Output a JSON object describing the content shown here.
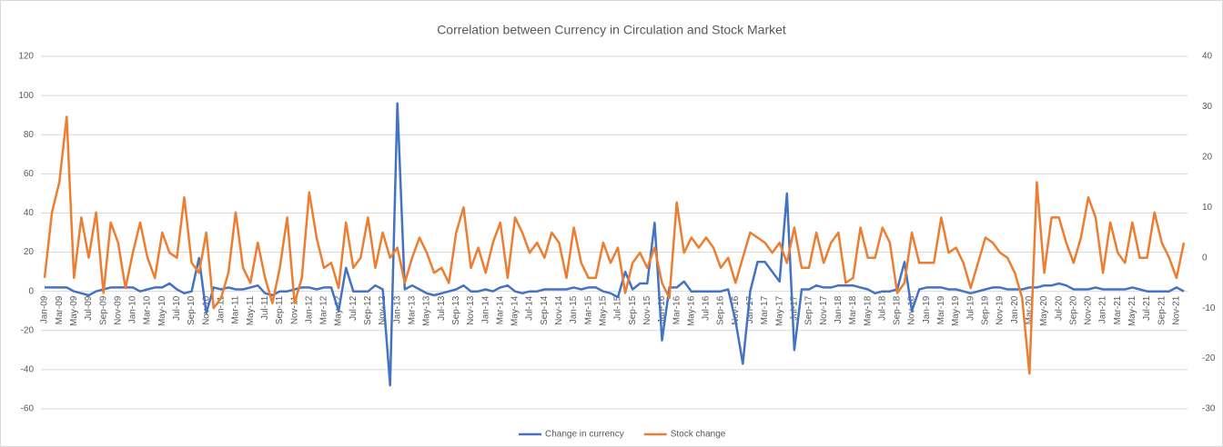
{
  "chart_data": {
    "type": "line",
    "title": "Correlation between Currency in Circulation and Stock Market",
    "categories": [
      "Jan-09",
      null,
      "Mar-09",
      null,
      "May-09",
      null,
      "Jul-09",
      null,
      "Sep-09",
      null,
      "Nov-09",
      null,
      "Jan-10",
      null,
      "Mar-10",
      null,
      "May-10",
      null,
      "Jul-10",
      null,
      "Sep-10",
      null,
      "Nov-10",
      null,
      "Jan-11",
      null,
      "Mar-11",
      null,
      "May-11",
      null,
      "Jul-11",
      null,
      "Sep-11",
      null,
      "Nov-11",
      null,
      "Jan-12",
      null,
      "Mar-12",
      null,
      "May-12",
      null,
      "Jul-12",
      null,
      "Sep-12",
      null,
      "Nov-12",
      null,
      "Jan-13",
      null,
      "Mar-13",
      null,
      "May-13",
      null,
      "Jul-13",
      null,
      "Sep-13",
      null,
      "Nov-13",
      null,
      "Jan-14",
      null,
      "Mar-14",
      null,
      "May-14",
      null,
      "Jul-14",
      null,
      "Sep-14",
      null,
      "Nov-14",
      null,
      "Jan-15",
      null,
      "Mar-15",
      null,
      "May-15",
      null,
      "Jul-15",
      null,
      "Sep-15",
      null,
      "Nov-15",
      null,
      "Jan-16",
      null,
      "Mar-16",
      null,
      "May-16",
      null,
      "Jul-16",
      null,
      "Sep-16",
      null,
      "Nov-16",
      null,
      "Jan-17",
      null,
      "Mar-17",
      null,
      "May-17",
      null,
      "Jul-17",
      null,
      "Sep-17",
      null,
      "Nov-17",
      null,
      "Jan-18",
      null,
      "Mar-18",
      null,
      "May-18",
      null,
      "Jul-18",
      null,
      "Sep-18",
      null,
      "Nov-18",
      null,
      "Jan-19",
      null,
      "Mar-19",
      null,
      "May-19",
      null,
      "Jul-19",
      null,
      "Sep-19",
      null,
      "Nov-19",
      null,
      "Jan-20",
      null,
      "Mar-20",
      null,
      "May-20",
      null,
      "Jul-20",
      null,
      "Sep-20",
      null,
      "Nov-20",
      null,
      "Jan-21",
      null,
      "Mar-21",
      null,
      "May-21",
      null,
      "Jul-21",
      null,
      "Sep-21",
      null,
      "Nov-21",
      null
    ],
    "series": [
      {
        "name": "Change in currency",
        "color": "#4472c4",
        "values": [
          2,
          2,
          2,
          2,
          0,
          -1,
          -2,
          0,
          1,
          2,
          2,
          2,
          2,
          0,
          1,
          2,
          2,
          4,
          1,
          -1,
          0,
          17,
          -11,
          2,
          1,
          2,
          1,
          1,
          2,
          3,
          -1,
          -2,
          0,
          0,
          1,
          2,
          2,
          1,
          2,
          2,
          -10,
          12,
          0,
          0,
          0,
          3,
          1,
          -48,
          96,
          1,
          3,
          1,
          -1,
          -2,
          -1,
          0,
          1,
          3,
          0,
          0,
          1,
          0,
          2,
          3,
          0,
          -1,
          0,
          0,
          1,
          1,
          1,
          1,
          2,
          1,
          2,
          2,
          0,
          -1,
          -3,
          10,
          1,
          4,
          4,
          35,
          -25,
          2,
          2,
          5,
          0,
          0,
          0,
          0,
          0,
          1,
          -15,
          -37,
          0,
          15,
          15,
          10,
          5,
          50,
          -30,
          1,
          1,
          3,
          2,
          2,
          3,
          3,
          3,
          2,
          1,
          -1,
          0,
          0,
          1,
          15,
          -10,
          1,
          2,
          2,
          2,
          1,
          1,
          0,
          -1,
          0,
          1,
          2,
          2,
          1,
          1,
          1,
          2,
          2,
          3,
          3,
          4,
          3,
          1,
          1,
          1,
          2,
          1,
          1,
          1,
          1,
          2,
          1,
          0,
          0,
          0,
          0,
          2,
          0
        ]
      },
      {
        "name": "Stock change",
        "color": "#ed7d31",
        "axis": "y2",
        "values": [
          -4,
          9,
          15,
          28,
          -4,
          8,
          0,
          9,
          -7,
          7,
          3,
          -6,
          1,
          7,
          0,
          -4,
          5,
          1,
          0,
          12,
          -1,
          -3,
          5,
          -10,
          -8,
          -3,
          9,
          -2,
          -5,
          3,
          -4,
          -9,
          -2,
          8,
          -9,
          -4,
          13,
          4,
          -2,
          -1,
          -6,
          7,
          -2,
          0,
          8,
          -2,
          5,
          0,
          2,
          -5,
          0,
          4,
          1,
          -3,
          -2,
          -5,
          5,
          10,
          -2,
          2,
          -3,
          3,
          7,
          -4,
          8,
          5,
          1,
          3,
          0,
          5,
          3,
          -4,
          6,
          -1,
          -4,
          -4,
          3,
          -1,
          2,
          -7,
          -1,
          1,
          -2,
          2,
          -5,
          -8,
          11,
          1,
          4,
          2,
          4,
          2,
          -2,
          0,
          -5,
          0,
          5,
          4,
          3,
          1,
          3,
          -1,
          6,
          -2,
          -2,
          5,
          -1,
          3,
          5,
          -5,
          -4,
          6,
          0,
          0,
          6,
          3,
          -7,
          -5,
          5,
          -1,
          -1,
          -1,
          8,
          1,
          2,
          -1,
          -6,
          -1,
          4,
          3,
          1,
          0,
          -3,
          -8,
          -23,
          15,
          -3,
          8,
          8,
          3,
          -1,
          4,
          12,
          8,
          -3,
          7,
          1,
          -1,
          7,
          0,
          0,
          9,
          3,
          0,
          -4,
          3
        ]
      }
    ],
    "ylim": [
      -60,
      120
    ],
    "yticks": [
      -60,
      -40,
      -20,
      0,
      20,
      40,
      60,
      80,
      100,
      120
    ],
    "y2lim": [
      -30,
      40
    ],
    "y2ticks": [
      -30,
      -20,
      -10,
      0,
      10,
      20,
      30,
      40
    ],
    "grid": true,
    "legend": "bottom"
  }
}
